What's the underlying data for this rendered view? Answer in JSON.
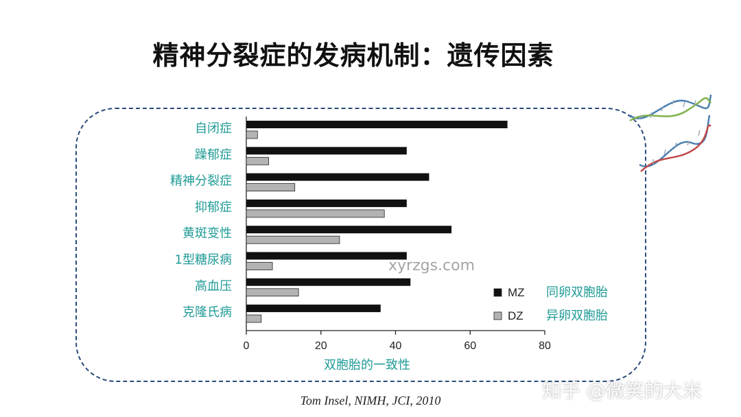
{
  "title": "精神分裂症的发病机制：遗传因素",
  "citation": "Tom Insel, NIMH, JCI, 2010",
  "watermarks": {
    "center": "xyrzgs.com",
    "corner": "知乎 @微笑的大米"
  },
  "colors": {
    "mz": "#111111",
    "dz": "#b3b3b3",
    "label": "#1f9b96",
    "frame": "#2a4a7a"
  },
  "chart_data": {
    "type": "bar",
    "orientation": "horizontal",
    "categories": [
      "自闭症",
      "躁郁症",
      "精神分裂症",
      "抑郁症",
      "黄斑变性",
      "1型糖尿病",
      "高血压",
      "克隆氏病"
    ],
    "series": [
      {
        "name": "MZ",
        "label_cn": "同卵双胞胎",
        "values": [
          70,
          43,
          49,
          43,
          55,
          43,
          44,
          36
        ]
      },
      {
        "name": "DZ",
        "label_cn": "异卵双胞胎",
        "values": [
          3,
          6,
          13,
          37,
          25,
          7,
          14,
          4
        ]
      }
    ],
    "xlabel": "双胞胎的一致性",
    "xlim": [
      0,
      80
    ],
    "xticks": [
      "0",
      "20",
      "40",
      "60",
      "80"
    ],
    "legend_position": "lower-right",
    "grid": false
  }
}
